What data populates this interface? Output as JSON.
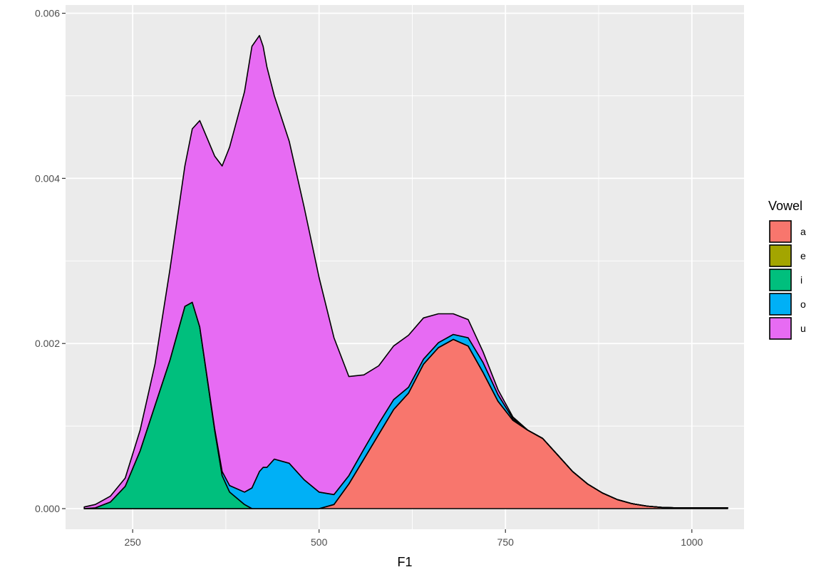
{
  "chart_data": {
    "type": "area",
    "subtype": "stacked density",
    "title": "",
    "xlabel": "F1",
    "ylabel": "",
    "xlim": [
      160,
      1070
    ],
    "ylim": [
      -0.00025,
      0.0061
    ],
    "x_ticks": [
      250,
      500,
      750,
      1000
    ],
    "x_tick_labels": [
      "250",
      "500",
      "750",
      "1000"
    ],
    "y_ticks": [
      0,
      0.002,
      0.004,
      0.006
    ],
    "y_tick_labels": [
      "0.000",
      "0.002",
      "0.004",
      "0.006"
    ],
    "grid": true,
    "legend": {
      "title": "Vowel",
      "position": "right"
    },
    "x": [
      185,
      200,
      220,
      240,
      260,
      280,
      300,
      320,
      330,
      340,
      360,
      370,
      380,
      400,
      410,
      420,
      425,
      430,
      440,
      460,
      480,
      500,
      520,
      540,
      560,
      580,
      600,
      620,
      640,
      660,
      680,
      700,
      720,
      740,
      760,
      780,
      800,
      820,
      840,
      860,
      880,
      900,
      920,
      940,
      960,
      980,
      1000,
      1020,
      1048
    ],
    "series": [
      {
        "name": "a",
        "color": "#F8766D",
        "values": [
          0,
          0,
          0,
          0,
          0,
          0,
          0,
          0,
          0,
          0,
          0,
          0,
          0,
          0,
          0,
          0,
          0,
          0,
          0,
          0,
          0,
          0,
          5e-05,
          0.0003,
          0.0006,
          0.0009,
          0.0012,
          0.0014,
          0.00175,
          0.00195,
          0.00205,
          0.00197,
          0.00165,
          0.0013,
          0.00107,
          0.00095,
          0.00085,
          0.00065,
          0.00045,
          0.0003,
          0.00019,
          0.00011,
          6e-05,
          3e-05,
          1.5e-05,
          1e-05,
          1e-05,
          1e-05,
          1e-05
        ]
      },
      {
        "name": "e",
        "color": "#A3A500",
        "values": [
          0,
          0,
          0,
          0,
          0,
          0,
          0,
          0,
          0,
          0,
          0,
          0,
          0,
          0,
          0,
          0,
          0,
          0,
          0,
          0,
          0,
          0,
          0,
          0,
          0,
          0,
          0,
          0,
          0,
          0,
          0,
          0,
          0,
          0,
          0,
          0,
          0,
          0,
          0,
          0,
          0,
          0,
          0,
          0,
          0,
          0,
          0,
          0,
          0
        ]
      },
      {
        "name": "i",
        "color": "#00BF7D",
        "values": [
          0,
          1e-05,
          8e-05,
          0.00027,
          0.0007,
          0.00125,
          0.0018,
          0.00245,
          0.0025,
          0.0022,
          0.00095,
          0.0004,
          0.0002,
          5e-05,
          0,
          0,
          0,
          0,
          0,
          0,
          0,
          0,
          0,
          0,
          0,
          0,
          0,
          0,
          0,
          0,
          0,
          0,
          0,
          0,
          0,
          0,
          0,
          0,
          0,
          0,
          0,
          0,
          0,
          0,
          0,
          0,
          0,
          0,
          0
        ]
      },
      {
        "name": "o",
        "color": "#00B0F6",
        "values": [
          0,
          0,
          0,
          0,
          0,
          0,
          0,
          0,
          0,
          0,
          2e-05,
          5e-05,
          8e-05,
          0.00015,
          0.00025,
          0.00045,
          0.0005,
          0.0005,
          0.0006,
          0.00055,
          0.00035,
          0.0002,
          0.00012,
          0.0001,
          0.00012,
          0.00013,
          0.00012,
          7e-05,
          6e-05,
          6e-05,
          6e-05,
          0.0001,
          0.00012,
          8e-05,
          2e-05,
          0,
          0,
          0,
          0,
          0,
          0,
          0,
          0,
          0,
          0,
          0,
          0,
          0,
          0
        ]
      },
      {
        "name": "u",
        "color": "#E76BF3",
        "values": [
          2e-05,
          4e-05,
          7e-05,
          0.0001,
          0.00025,
          0.0005,
          0.0011,
          0.0017,
          0.0021,
          0.0025,
          0.0033,
          0.0037,
          0.0041,
          0.00485,
          0.00535,
          0.00528,
          0.0051,
          0.00485,
          0.0044,
          0.0039,
          0.0033,
          0.0026,
          0.0019,
          0.0012,
          0.0009,
          0.0007,
          0.00065,
          0.00063,
          0.0005,
          0.00035,
          0.00025,
          0.00022,
          0.00013,
          6e-05,
          2e-05,
          0,
          0,
          0,
          0,
          0,
          0,
          0,
          0,
          0,
          0,
          0,
          0,
          0,
          0
        ]
      }
    ]
  }
}
